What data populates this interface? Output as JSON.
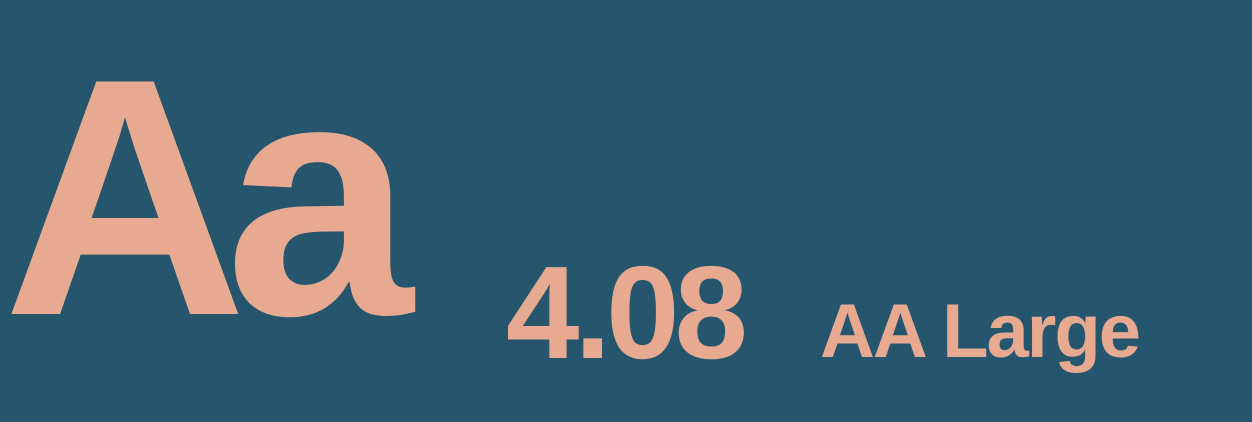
{
  "colors": {
    "background": "#25566e",
    "foreground": "#e8a991"
  },
  "sample_text": "Aa",
  "contrast_ratio": "4.08",
  "rating": "AA Large"
}
